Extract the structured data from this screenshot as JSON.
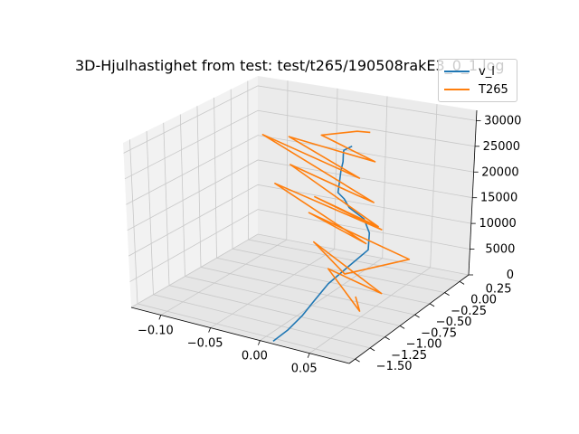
{
  "chart_data": {
    "type": "line",
    "title": "3D-Hjulhastighet from test: test/t265/190508rakE3_0_1.log",
    "xlabel": "",
    "ylabel": "",
    "zlabel": "",
    "grid": true,
    "legend_position": "top-right",
    "xlim": [
      -0.13,
      0.09
    ],
    "ylim": [
      -1.6,
      0.4
    ],
    "zlim": [
      0,
      32000
    ],
    "x_ticks": [
      "−0.10",
      "−0.05",
      "0.00",
      "0.05"
    ],
    "y_ticks": [
      "−1.50",
      "−1.25",
      "−1.00",
      "−0.75",
      "−0.50",
      "−0.25",
      "0.00",
      "0.25"
    ],
    "z_ticks": [
      "0",
      "5000",
      "10000",
      "15000",
      "20000",
      "25000",
      "30000"
    ],
    "series": [
      {
        "name": "v_l",
        "color": "#1f77b4",
        "x": [
          0.01,
          0.012,
          0.011,
          0.009,
          0.006,
          0.008,
          0.012,
          0.004,
          -0.004,
          -0.012,
          -0.01,
          -0.006,
          0.002,
          0.01,
          0.018,
          0.024,
          0.028,
          0.03,
          0.034
        ],
        "y": [
          -1.55,
          -1.35,
          -1.1,
          -0.9,
          -0.6,
          -0.3,
          -0.05,
          0.1,
          0.15,
          0.05,
          -0.05,
          -0.2,
          -0.3,
          -0.4,
          -0.5,
          -0.55,
          -0.6,
          -0.62,
          -0.55
        ],
        "z": [
          0,
          800,
          1800,
          2800,
          4200,
          5600,
          7200,
          9000,
          11000,
          13500,
          16000,
          18500,
          21000,
          23500,
          26000,
          28500,
          30500,
          31500,
          32000
        ]
      },
      {
        "name": "T265",
        "color": "#ff7f0e",
        "x": [
          0.02,
          0.05,
          -0.02,
          0.06,
          -0.04,
          0.03,
          0.07,
          -0.05,
          0.04,
          -0.09,
          0.05,
          -0.03,
          0.06,
          -0.07,
          0.02,
          0.05,
          -0.1,
          0.03,
          -0.06,
          0.04,
          -0.02,
          0.01,
          0.03
        ],
        "y": [
          -0.4,
          -0.8,
          -0.2,
          -0.6,
          -0.1,
          -0.7,
          -0.3,
          0.0,
          -0.5,
          0.1,
          -0.4,
          -0.2,
          -0.6,
          0.05,
          -0.3,
          -0.5,
          0.1,
          -0.4,
          -0.1,
          -0.3,
          -0.2,
          -0.1,
          -0.2
        ],
        "z": [
          1000,
          2500,
          3000,
          5000,
          6500,
          8000,
          10000,
          11000,
          13000,
          14000,
          15500,
          16500,
          18000,
          19000,
          20000,
          21500,
          23000,
          24500,
          26000,
          27500,
          29000,
          30500,
          32000
        ]
      }
    ]
  }
}
